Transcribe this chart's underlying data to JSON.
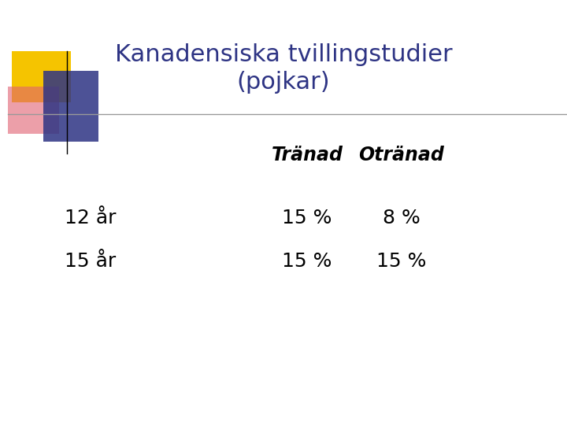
{
  "title_line1": "Kanadensiska tvillingstudier",
  "title_line2": "(pojkar)",
  "title_color": "#2E3484",
  "header_trained": "Tränad",
  "header_untrained": "Otränad",
  "row1_label": "12 år",
  "row2_label": "15 år",
  "row1_trained": "15 %",
  "row1_untrained": "8 %",
  "row2_trained": "15 %",
  "row2_untrained": "15 %",
  "bg_color": "#FFFFFF",
  "text_color": "#000000",
  "header_color": "#000000",
  "separator_color": "#999999",
  "square_yellow": "#F5C400",
  "square_red": "#E06070",
  "square_blue": "#2E3484",
  "title_fontsize": 22,
  "header_fontsize": 17,
  "data_fontsize": 18,
  "label_fontsize": 18
}
